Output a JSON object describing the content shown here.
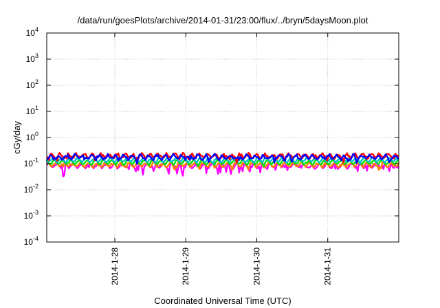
{
  "chart_data": {
    "type": "line",
    "title": "/data/run/goesPlots/archive/2014-01-31/23:00/flux/../bryn/5daysMoon.plot",
    "xlabel": "Coordinated Universal Time (UTC)",
    "ylabel": "cGy/day",
    "y_scale": "log",
    "ylim": [
      0.0001,
      10000
    ],
    "xlim": [
      "2014-01-27T01:00",
      "2014-02-01T00:00"
    ],
    "grid": true,
    "legend": "none",
    "y_ticks": [
      {
        "base": "10",
        "exp": "4",
        "value": 10000
      },
      {
        "base": "10",
        "exp": "3",
        "value": 1000
      },
      {
        "base": "10",
        "exp": "2",
        "value": 100
      },
      {
        "base": "10",
        "exp": "1",
        "value": 10
      },
      {
        "base": "10",
        "exp": "0",
        "value": 1
      },
      {
        "base": "10",
        "exp": "-1",
        "value": 0.1
      },
      {
        "base": "10",
        "exp": "-2",
        "value": 0.01
      },
      {
        "base": "10",
        "exp": "-3",
        "value": 0.001
      },
      {
        "base": "10",
        "exp": "-4",
        "value": 0.0001
      }
    ],
    "x_ticks": [
      {
        "label": "2014-1-28",
        "value": "2014-01-28T00:00"
      },
      {
        "label": "2014-1-29",
        "value": "2014-01-29T00:00"
      },
      {
        "label": "2014-1-30",
        "value": "2014-01-30T00:00"
      },
      {
        "label": "2014-1-31",
        "value": "2014-01-31T00:00"
      }
    ],
    "series": [
      {
        "color": "#ff00ff",
        "level": 0.085,
        "jitter": 0.2,
        "dip_chance": 0.18,
        "dip_depth": 0.5
      },
      {
        "color": "#ff7f00",
        "level": 0.092,
        "jitter": 0.15,
        "dip_chance": 0.08,
        "dip_depth": 0.25
      },
      {
        "color": "#00e000",
        "level": 0.115,
        "jitter": 0.12,
        "dip_chance": 0.06,
        "dip_depth": 0.2
      },
      {
        "color": "#00c0c0",
        "level": 0.14,
        "jitter": 0.14,
        "dip_chance": 0.06,
        "dip_depth": 0.2
      },
      {
        "color": "#ff0000",
        "level": 0.2,
        "jitter": 0.22,
        "dip_chance": 0.12,
        "dip_depth": 0.35
      },
      {
        "color": "#0000ff",
        "level": 0.18,
        "jitter": 0.25,
        "dip_chance": 0.12,
        "dip_depth": 0.4
      }
    ]
  }
}
